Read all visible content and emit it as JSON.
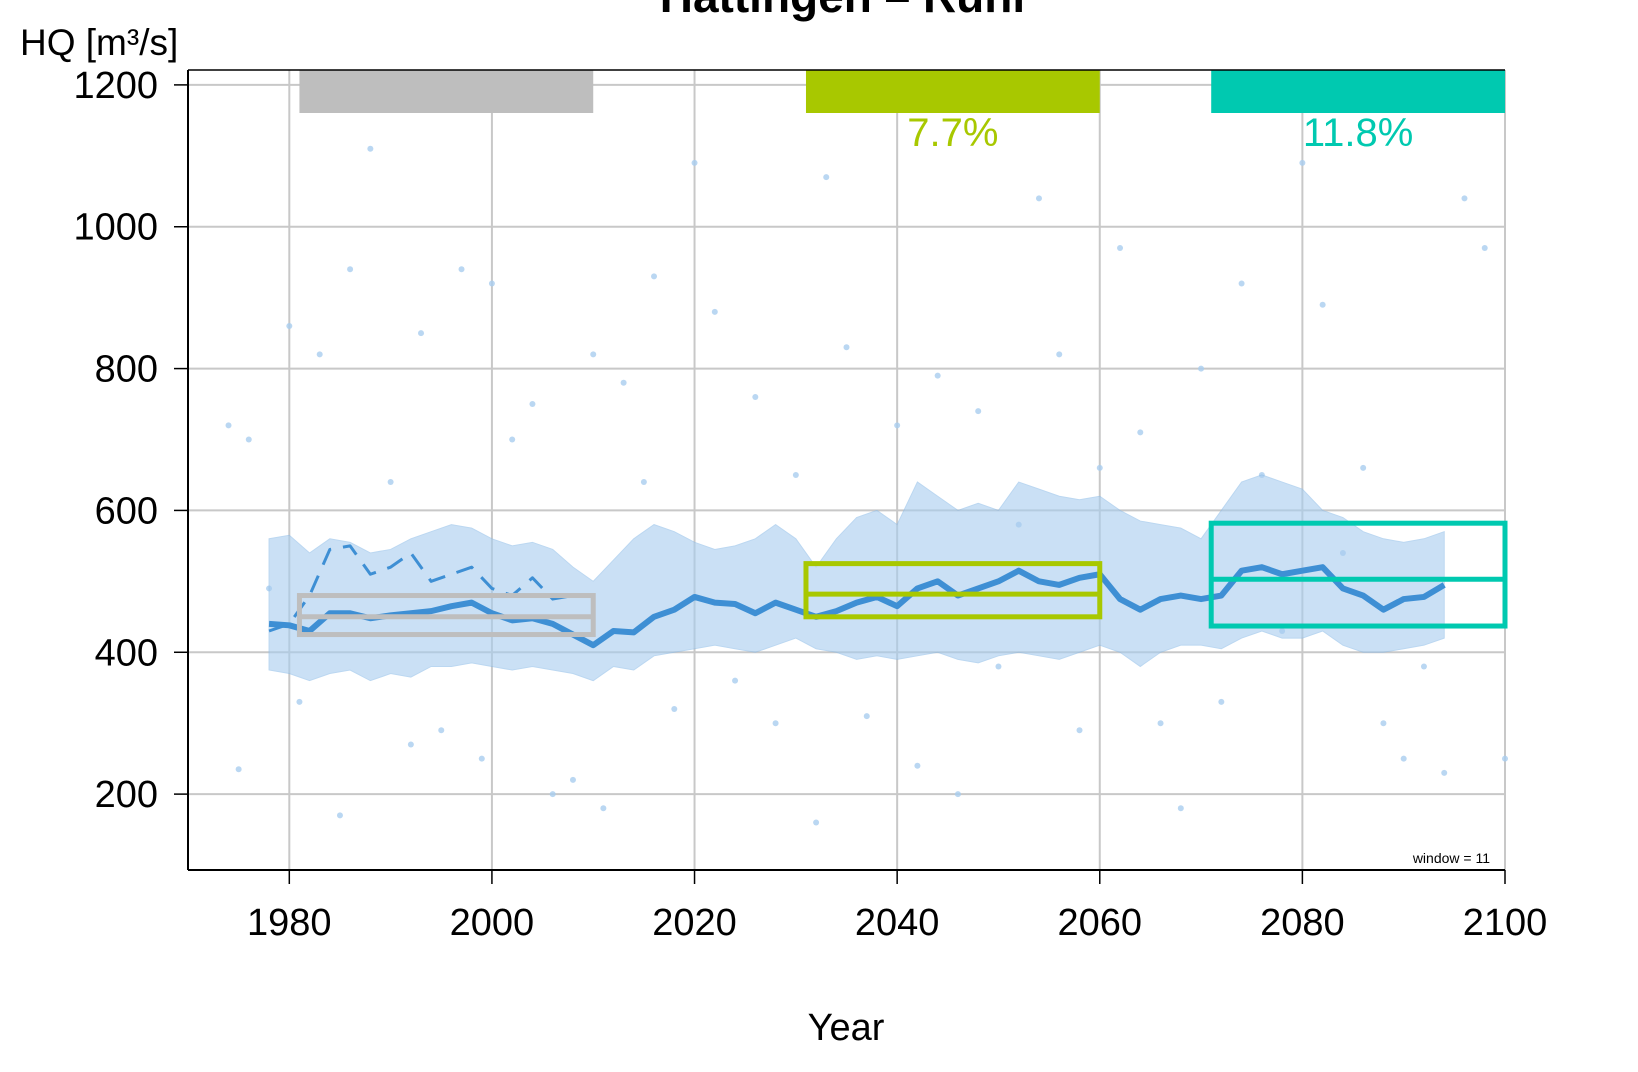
{
  "chart_data": {
    "type": "line",
    "title": "Hattingen – Ruhr",
    "xlabel": "Year",
    "ylabel": "HQ [m³/s]",
    "annotation": "window =  11",
    "xlim": [
      1970,
      2100
    ],
    "ylim": [
      93,
      1221
    ],
    "xticks": [
      1980,
      2000,
      2020,
      2040,
      2060,
      2080,
      2100
    ],
    "yticks": [
      200,
      400,
      600,
      800,
      1000,
      1200
    ],
    "grid": true,
    "x": [
      1978,
      1980,
      1982,
      1984,
      1986,
      1988,
      1990,
      1992,
      1994,
      1996,
      1998,
      2000,
      2002,
      2004,
      2006,
      2008,
      2010,
      2012,
      2014,
      2016,
      2018,
      2020,
      2022,
      2024,
      2026,
      2028,
      2030,
      2032,
      2034,
      2036,
      2038,
      2040,
      2042,
      2044,
      2046,
      2048,
      2050,
      2052,
      2054,
      2056,
      2058,
      2060,
      2062,
      2064,
      2066,
      2068,
      2070,
      2072,
      2074,
      2076,
      2078,
      2080,
      2082,
      2084,
      2086,
      2088,
      2090,
      2092,
      2094
    ],
    "series": [
      {
        "color": "#3e8fd4",
        "style": "solid",
        "values": [
          440,
          438,
          430,
          455,
          455,
          448,
          452,
          455,
          458,
          465,
          470,
          455,
          445,
          448,
          440,
          425,
          410,
          430,
          428,
          450,
          460,
          478,
          470,
          468,
          455,
          470,
          460,
          450,
          458,
          470,
          478,
          465,
          490,
          500,
          480,
          490,
          500,
          515,
          500,
          495,
          505,
          510,
          475,
          460,
          475,
          480,
          475,
          480,
          515,
          520,
          510,
          515,
          520,
          490,
          480,
          460,
          475,
          478,
          495
        ]
      },
      {
        "color": "#3e8fd4",
        "style": "dashed",
        "values": [
          430,
          440,
          480,
          545,
          550,
          510,
          520,
          540,
          500,
          510,
          520,
          490,
          480,
          505,
          475,
          480,
          null,
          null,
          null,
          null,
          null,
          null,
          null,
          null,
          null,
          null,
          null,
          null,
          null,
          null,
          null,
          null,
          null,
          null,
          null,
          null,
          null,
          null,
          null,
          null,
          null,
          null,
          null,
          null,
          null,
          null,
          null,
          null,
          null,
          null,
          null,
          null,
          null,
          null,
          null,
          null,
          null,
          null,
          null
        ]
      }
    ],
    "band_color": "#a8cdef",
    "band_upper": [
      560,
      565,
      540,
      560,
      555,
      540,
      545,
      560,
      570,
      580,
      575,
      560,
      550,
      555,
      545,
      520,
      500,
      530,
      560,
      580,
      570,
      555,
      545,
      550,
      560,
      580,
      560,
      520,
      560,
      590,
      600,
      580,
      640,
      620,
      600,
      610,
      600,
      640,
      630,
      620,
      615,
      620,
      600,
      585,
      580,
      575,
      560,
      600,
      640,
      650,
      640,
      630,
      600,
      590,
      570,
      560,
      555,
      560,
      570
    ],
    "band_lower": [
      375,
      370,
      360,
      370,
      375,
      360,
      370,
      365,
      380,
      380,
      385,
      380,
      375,
      380,
      375,
      370,
      360,
      380,
      375,
      395,
      400,
      405,
      410,
      405,
      400,
      410,
      420,
      405,
      400,
      390,
      395,
      390,
      395,
      400,
      390,
      385,
      395,
      400,
      395,
      390,
      400,
      410,
      400,
      380,
      400,
      410,
      410,
      405,
      420,
      430,
      420,
      420,
      430,
      410,
      400,
      400,
      405,
      410,
      420
    ],
    "points_color": "#a9cdef",
    "points": {
      "x": [
        1974,
        1975,
        1976,
        1978,
        1980,
        1981,
        1983,
        1985,
        1986,
        1988,
        1990,
        1992,
        1993,
        1995,
        1997,
        1999,
        2000,
        2002,
        2004,
        2006,
        2008,
        2010,
        2011,
        2013,
        2015,
        2016,
        2018,
        2020,
        2022,
        2024,
        2026,
        2028,
        2030,
        2032,
        2033,
        2035,
        2037,
        2040,
        2042,
        2044,
        2046,
        2048,
        2050,
        2052,
        2054,
        2056,
        2058,
        2060,
        2062,
        2064,
        2066,
        2068,
        2070,
        2072,
        2074,
        2076,
        2078,
        2080,
        2082,
        2084,
        2086,
        2088,
        2090,
        2092,
        2094,
        2096,
        2098,
        2100
      ],
      "y": [
        720,
        235,
        700,
        490,
        860,
        330,
        820,
        170,
        940,
        1110,
        640,
        270,
        850,
        290,
        940,
        250,
        920,
        700,
        750,
        200,
        220,
        820,
        180,
        780,
        640,
        930,
        320,
        1090,
        880,
        360,
        760,
        300,
        650,
        160,
        1070,
        830,
        310,
        720,
        240,
        790,
        200,
        740,
        380,
        580,
        1040,
        820,
        290,
        660,
        970,
        710,
        300,
        180,
        800,
        330,
        920,
        650,
        430,
        1090,
        890,
        540,
        660,
        300,
        250,
        380,
        230,
        1040,
        970,
        250
      ]
    },
    "periods": [
      {
        "start": 1981,
        "end": 2010,
        "low": 425,
        "mid": 450,
        "high": 480,
        "color": "#bebebe"
      },
      {
        "start": 2031,
        "end": 2060,
        "low": 450,
        "mid": 482,
        "high": 525,
        "color": "#a8c800"
      },
      {
        "start": 2071,
        "end": 2100,
        "low": 437,
        "mid": 503,
        "high": 582,
        "color": "#00c9b0"
      }
    ],
    "changes": {
      "values": [
        7.7,
        11.8
      ],
      "value_labels": [
        "7.7%",
        "11.8%"
      ]
    }
  }
}
